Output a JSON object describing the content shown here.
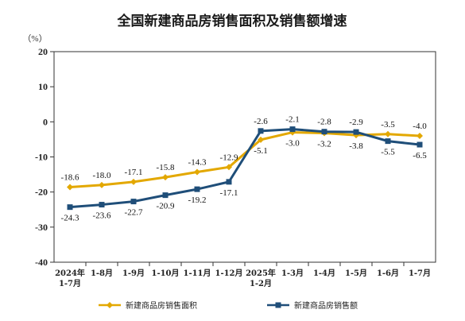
{
  "chart_data": {
    "type": "line",
    "title": "全国新建商品房销售面积及销售额增速",
    "y_unit": "（%）",
    "ylim": [
      -40,
      20
    ],
    "yticks": [
      20,
      10,
      0,
      -10,
      -20,
      -30,
      -40
    ],
    "grid": false,
    "legend_position": "bottom",
    "categories": [
      [
        "2024年",
        "1-7月"
      ],
      [
        "1-8月"
      ],
      [
        "1-9月"
      ],
      [
        "1-10月"
      ],
      [
        "1-11月"
      ],
      [
        "1-12月"
      ],
      [
        "2025年",
        "1-2月"
      ],
      [
        "1-3月"
      ],
      [
        "1-4月"
      ],
      [
        "1-5月"
      ],
      [
        "1-6月"
      ],
      [
        "1-7月"
      ]
    ],
    "series": [
      {
        "name": "新建商品房销售面积",
        "color": "#e3a800",
        "marker": "diamond",
        "values": [
          -18.6,
          -18.0,
          -17.1,
          -15.8,
          -14.3,
          -12.9,
          -5.1,
          -3.0,
          -3.2,
          -3.8,
          -3.5,
          -4.0
        ],
        "labels": [
          "-18.6",
          "-18.0",
          "-17.1",
          "-15.8",
          "-14.3",
          "-12.9",
          "-5.1",
          "-3.0",
          "-3.2",
          "-3.8",
          "-3.5",
          "-4.0"
        ]
      },
      {
        "name": "新建商品房销售额",
        "color": "#1f4e79",
        "marker": "square",
        "values": [
          -24.3,
          -23.6,
          -22.7,
          -20.9,
          -19.2,
          -17.1,
          -2.6,
          -2.1,
          -2.8,
          -2.9,
          -5.5,
          -6.5
        ],
        "labels": [
          "-24.3",
          "-23.6",
          "-22.7",
          "-20.9",
          "-19.2",
          "-17.1",
          "-2.6",
          "-2.1",
          "-2.8",
          "-2.9",
          "-5.5",
          "-6.5"
        ]
      }
    ]
  }
}
